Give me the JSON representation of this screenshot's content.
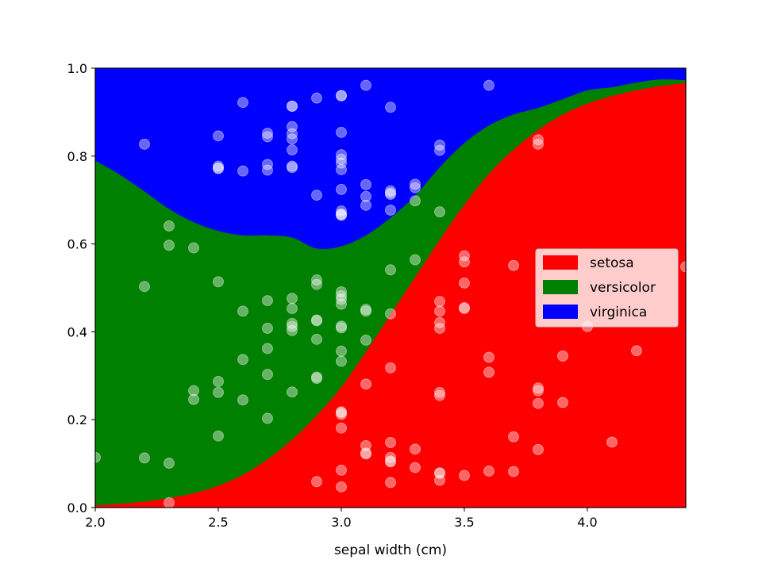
{
  "chart_data": {
    "type": "area",
    "title": "",
    "xlabel": "sepal width (cm)",
    "ylabel": "",
    "xlim": [
      2.0,
      4.4
    ],
    "ylim": [
      0.0,
      1.0
    ],
    "xticks": [
      "2.0",
      "2.5",
      "3.0",
      "3.5",
      "4.0"
    ],
    "yticks": [
      "0.0",
      "0.2",
      "0.4",
      "0.6",
      "0.8",
      "1.0"
    ],
    "xtick_values": [
      2.0,
      2.5,
      3.0,
      3.5,
      4.0
    ],
    "ytick_values": [
      0.0,
      0.2,
      0.4,
      0.6,
      0.8,
      1.0
    ],
    "stacked": true,
    "legend_position": "center-right",
    "x": [
      2.0,
      2.1,
      2.2,
      2.3,
      2.4,
      2.5,
      2.6,
      2.7,
      2.8,
      2.9,
      3.0,
      3.1,
      3.2,
      3.3,
      3.4,
      3.5,
      3.6,
      3.7,
      3.8,
      3.9,
      4.0,
      4.1,
      4.2,
      4.3,
      4.4
    ],
    "series": [
      {
        "name": "setosa",
        "color": "#ff0000",
        "values": [
          0.005,
          0.009,
          0.014,
          0.022,
          0.033,
          0.05,
          0.075,
          0.11,
          0.155,
          0.21,
          0.275,
          0.355,
          0.44,
          0.525,
          0.61,
          0.69,
          0.76,
          0.815,
          0.86,
          0.895,
          0.92,
          0.937,
          0.95,
          0.96,
          0.967
        ]
      },
      {
        "name": "versicolor",
        "color": "#008000",
        "values": [
          0.785,
          0.749,
          0.706,
          0.658,
          0.617,
          0.58,
          0.545,
          0.51,
          0.46,
          0.38,
          0.32,
          0.265,
          0.22,
          0.185,
          0.165,
          0.14,
          0.11,
          0.08,
          0.05,
          0.035,
          0.03,
          0.02,
          0.018,
          0.015,
          0.006
        ]
      },
      {
        "name": "virginica",
        "color": "#0000ff",
        "values": [
          0.21,
          0.242,
          0.28,
          0.32,
          0.35,
          0.37,
          0.38,
          0.38,
          0.385,
          0.41,
          0.405,
          0.38,
          0.34,
          0.29,
          0.225,
          0.17,
          0.13,
          0.105,
          0.09,
          0.07,
          0.05,
          0.043,
          0.032,
          0.025,
          0.027
        ]
      }
    ],
    "points": {
      "color": "#ffffff",
      "opacity": 0.4,
      "x": [
        3.5,
        3.0,
        3.2,
        3.1,
        3.6,
        3.9,
        3.4,
        3.4,
        2.9,
        3.1,
        3.7,
        3.4,
        3.0,
        3.0,
        4.0,
        4.4,
        3.9,
        3.5,
        3.8,
        3.8,
        3.4,
        3.7,
        3.6,
        3.3,
        3.4,
        3.0,
        3.4,
        3.5,
        3.4,
        3.2,
        3.1,
        3.4,
        4.1,
        4.2,
        3.1,
        3.2,
        3.5,
        3.6,
        3.0,
        3.4,
        3.5,
        2.3,
        3.2,
        3.5,
        3.8,
        3.0,
        3.8,
        3.2,
        3.7,
        3.3,
        3.2,
        3.2,
        3.1,
        2.3,
        2.8,
        2.8,
        3.3,
        2.4,
        2.9,
        2.7,
        2.0,
        3.0,
        2.2,
        2.9,
        2.9,
        3.1,
        3.0,
        2.7,
        2.2,
        2.5,
        3.2,
        2.8,
        2.5,
        2.8,
        2.9,
        3.0,
        2.8,
        3.0,
        2.9,
        2.6,
        2.4,
        2.4,
        2.7,
        2.7,
        3.0,
        3.4,
        3.1,
        2.3,
        3.0,
        2.5,
        2.6,
        3.0,
        2.6,
        2.3,
        2.7,
        3.0,
        2.9,
        2.9,
        2.5,
        2.8,
        3.3,
        2.7,
        3.0,
        2.9,
        3.0,
        3.0,
        2.5,
        2.9,
        2.5,
        3.6,
        3.2,
        2.7,
        3.0,
        2.5,
        2.8,
        3.2,
        3.0,
        3.8,
        2.6,
        2.2,
        3.2,
        2.8,
        2.8,
        2.7,
        3.3,
        3.2,
        2.8,
        3.0,
        2.8,
        3.0,
        2.8,
        3.8,
        2.8,
        2.8,
        2.6,
        3.0,
        3.4,
        3.1,
        3.0,
        3.1,
        3.1,
        3.1,
        2.7,
        3.2,
        3.3,
        3.0,
        2.5,
        3.0,
        3.4,
        3.0
      ],
      "y": [
        0.573,
        0.181,
        0.057,
        0.447,
        0.308,
        0.345,
        0.062,
        0.421,
        0.059,
        0.141,
        0.551,
        0.255,
        0.212,
        0.047,
        0.412,
        0.548,
        0.239,
        0.453,
        0.237,
        0.272,
        0.079,
        0.161,
        0.083,
        0.133,
        0.408,
        0.216,
        0.078,
        0.559,
        0.469,
        0.148,
        0.122,
        0.447,
        0.149,
        0.357,
        0.124,
        0.106,
        0.511,
        0.342,
        0.085,
        0.262,
        0.455,
        0.011,
        0.114,
        0.073,
        0.132,
        0.218,
        0.266,
        0.104,
        0.082,
        0.091,
        0.318,
        0.541,
        0.451,
        0.101,
        0.263,
        0.412,
        0.564,
        0.246,
        0.294,
        0.203,
        0.114,
        0.356,
        0.503,
        0.425,
        0.297,
        0.381,
        0.474,
        0.362,
        0.113,
        0.163,
        0.441,
        0.453,
        0.287,
        0.476,
        0.427,
        0.491,
        0.419,
        0.463,
        0.508,
        0.447,
        0.266,
        0.591,
        0.471,
        0.303,
        0.333,
        0.673,
        0.281,
        0.641,
        0.482,
        0.514,
        0.337,
        0.413,
        0.245,
        0.597,
        0.408,
        0.409,
        0.383,
        0.518,
        0.262,
        0.403,
        0.736,
        0.768,
        0.938,
        0.711,
        0.724,
        0.937,
        0.777,
        0.932,
        0.846,
        0.961,
        0.713,
        0.852,
        0.793,
        0.772,
        0.867,
        0.721,
        0.784,
        0.837,
        0.922,
        0.827,
        0.677,
        0.774,
        0.839,
        0.781,
        0.698,
        0.911,
        0.814,
        0.667,
        0.914,
        0.803,
        0.913,
        0.827,
        0.851,
        0.777,
        0.766,
        0.675,
        0.825,
        0.688,
        0.668,
        0.735,
        0.708,
        0.961,
        0.844,
        0.716,
        0.728,
        0.769,
        0.772,
        0.665,
        0.813,
        0.854
      ]
    }
  }
}
